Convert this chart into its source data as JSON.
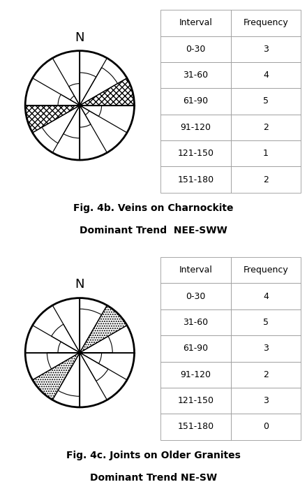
{
  "fig4b": {
    "title_line1": "Fig. 4b. Veins on Charnockite",
    "title_line2": "Dominant Trend  NEE-SWW",
    "intervals": [
      "0-30",
      "31-60",
      "61-90",
      "91-120",
      "121-150",
      "151-180"
    ],
    "frequencies": [
      3,
      4,
      5,
      2,
      1,
      2
    ],
    "max_freq": 5,
    "dominant_interval_idx": 2,
    "hatch": "xxxx",
    "circle_lw": 2.0,
    "line_color": "#000000"
  },
  "fig4c": {
    "title_line1": "Fig. 4c. Joints on Older Granites",
    "title_line2": "Dominant Trend NE-SW",
    "intervals": [
      "0-30",
      "31-60",
      "61-90",
      "91-120",
      "121-150",
      "151-180"
    ],
    "frequencies": [
      4,
      5,
      3,
      2,
      3,
      0
    ],
    "max_freq": 5,
    "dominant_interval_idx": 1,
    "hatch": ".....",
    "circle_lw": 2.0,
    "line_color": "#666666"
  },
  "bg_color": "#ffffff",
  "text_color": "#000000",
  "font_size_title": 10,
  "font_size_table": 9
}
